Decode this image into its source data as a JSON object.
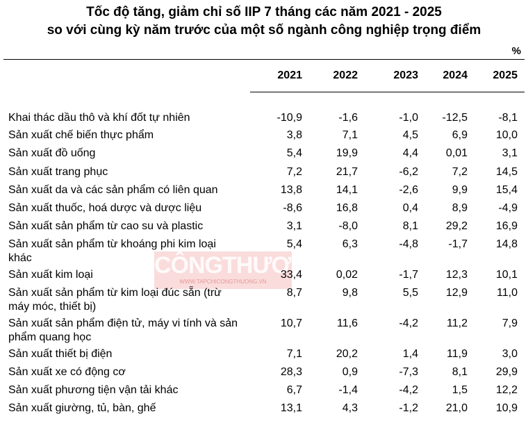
{
  "header": {
    "title_line1": "Tốc độ tăng, giảm chỉ số IIP 7 tháng các năm 2021 - 2025",
    "title_line2": "so với cùng kỳ năm trước của một số ngành công nghiệp trọng điểm",
    "unit": "%"
  },
  "watermark": {
    "brand": "CÔNGTHƯƠNG",
    "url": "WWW.TAPCHICONGTHUONG.VN"
  },
  "table": {
    "columns": [
      "2021",
      "2022",
      "2023",
      "2024",
      "2025"
    ],
    "rows": [
      [
        "Khai thác dầu thô và khí đốt tự nhiên",
        "-10,9",
        "-1,6",
        "-1,0",
        "-12,5",
        "-8,1"
      ],
      [
        "Sản xuất chế biến thực phẩm",
        "3,8",
        "7,1",
        "4,5",
        "6,9",
        "10,0"
      ],
      [
        "Sản xuất đồ uống",
        "5,4",
        "19,9",
        "4,4",
        "0,01",
        "3,1"
      ],
      [
        "Sản xuất trang phục",
        "7,2",
        "21,7",
        "-6,2",
        "7,2",
        "14,5"
      ],
      [
        "Sản xuất da và các sản phẩm có liên quan",
        "13,8",
        "14,1",
        "-2,6",
        "9,9",
        "15,4"
      ],
      [
        "Sản xuất thuốc, hoá dược và dược liệu",
        "-8,6",
        "16,8",
        "0,4",
        "8,9",
        "-4,9"
      ],
      [
        "Sản xuất sản phẩm từ cao su và plastic",
        "3,1",
        "-8,0",
        "8,1",
        "29,2",
        "16,9"
      ],
      [
        "Sản xuất sản phẩm từ khoáng phi kim loại khác",
        "5,4",
        "6,3",
        "-4,8",
        "-1,7",
        "14,8"
      ],
      [
        "Sản xuất kim loại",
        "33,4",
        "0,02",
        "-1,7",
        "12,3",
        "10,1"
      ],
      [
        "Sản xuất sản phẩm từ kim loại đúc sẵn (trừ máy móc, thiết bị)",
        "8,7",
        "9,8",
        "5,5",
        "12,9",
        "11,0"
      ],
      [
        "Sản xuất sản phẩm điện tử, máy vi tính và sản phẩm quang học",
        "10,7",
        "11,6",
        "-4,2",
        "11,2",
        "7,9"
      ],
      [
        "Sản xuất thiết bị điện",
        "7,1",
        "20,2",
        "1,4",
        "11,9",
        "3,0"
      ],
      [
        "Sản xuất xe có động cơ",
        "28,3",
        "0,9",
        "-7,3",
        "8,1",
        "29,9"
      ],
      [
        "Sản xuất phương tiện vận tải khác",
        "6,7",
        "-1,4",
        "-4,2",
        "1,5",
        "12,2"
      ],
      [
        "Sản xuất giường, tủ, bàn, ghế",
        "13,1",
        "4,3",
        "-1,2",
        "21,0",
        "10,9"
      ]
    ]
  }
}
